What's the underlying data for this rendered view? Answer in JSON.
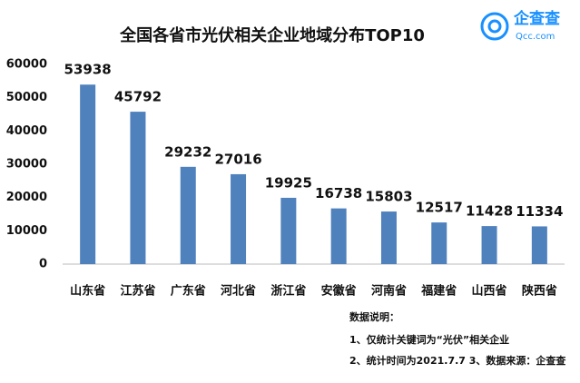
{
  "chart_data": {
    "type": "bar",
    "title": "全国各省市光伏相关企业地域分布TOP10",
    "categories": [
      "山东省",
      "江苏省",
      "广东省",
      "河北省",
      "浙江省",
      "安徽省",
      "河南省",
      "福建省",
      "山西省",
      "陕西省"
    ],
    "values": [
      53938,
      45792,
      29232,
      27016,
      19925,
      16738,
      15803,
      12517,
      11428,
      11334
    ],
    "color": "#4f81bd",
    "ylim": [
      0,
      60000
    ],
    "yticks": [
      0,
      10000,
      20000,
      30000,
      40000,
      50000,
      60000
    ],
    "grid": false,
    "notes_title": "数据说明：",
    "notes": [
      "1、仅统计关键词为“光伏”相关企业",
      "2、统计时间为2021.7.7  3、数据来源：企查查"
    ]
  },
  "logo": {
    "name": "企查查",
    "url": "Qcc.com"
  }
}
